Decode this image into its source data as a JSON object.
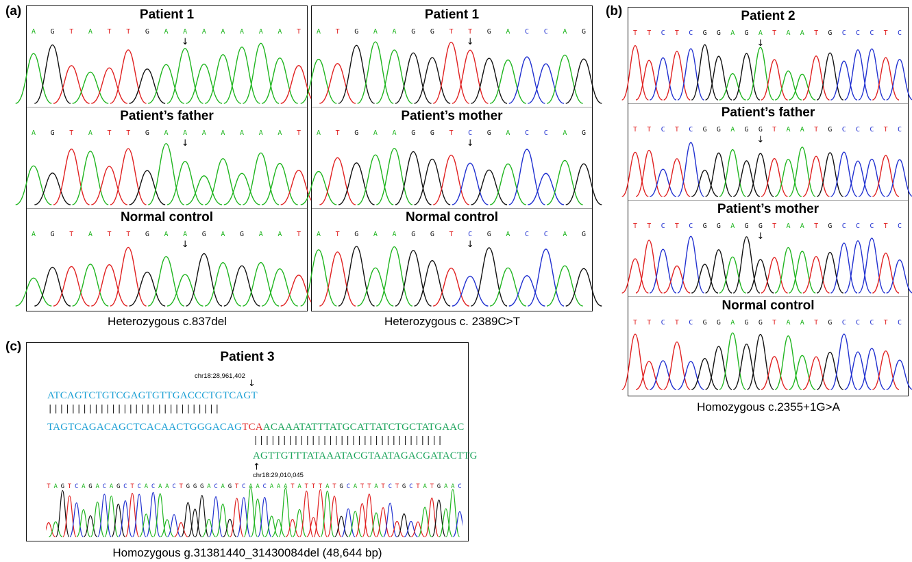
{
  "labels": {
    "a": "(a)",
    "b": "(b)",
    "c": "(c)"
  },
  "colors": {
    "A": "#1fb51f",
    "G": "#111111",
    "T": "#e02020",
    "C": "#2030d0",
    "cyan": "#1a9fd4",
    "green": "#1aa35a",
    "red": "#e03030"
  },
  "panel_a1": {
    "caption": "Heterozygous c.837del",
    "tracks": [
      {
        "title": "Patient 1",
        "bases": "AGTATTGAAAAAAAT",
        "arrow_index": 8
      },
      {
        "title": "Patient’s father",
        "bases": "AGTATTGAAAAAAAT",
        "arrow_index": 8
      },
      {
        "title": "Normal control",
        "bases": "AGTATTGAAGAGAAT",
        "arrow_index": 8
      }
    ]
  },
  "panel_a2": {
    "caption": "Heterozygous c. 2389C>T",
    "tracks": [
      {
        "title": "Patient 1",
        "bases": "ATGAAGGTTGACCAG",
        "arrow_index": 8
      },
      {
        "title": "Patient’s mother",
        "bases": "ATGAAGGTCGACCAG",
        "arrow_index": 8
      },
      {
        "title": "Normal control",
        "bases": "ATGAAGGTCGACCAG",
        "arrow_index": 8
      }
    ]
  },
  "panel_b": {
    "caption": "Homozygous c.2355+1G>A",
    "tracks": [
      {
        "title": "Patient 2",
        "bases": "TTCTCGGAGATAATGCCCTC",
        "arrow_index": 9
      },
      {
        "title": "Patient’s father",
        "bases": "TTCTCGGAGGTAATGCCCTC",
        "arrow_index": 9
      },
      {
        "title": "Patient’s mother",
        "bases": "TTCTCGGAGGTAATGCCCTC",
        "arrow_index": 9
      },
      {
        "title": "Normal control",
        "bases": "TTCTCGGAGGTAATGCCCTC",
        "arrow_index": -1
      }
    ]
  },
  "panel_c": {
    "title": "Patient 3",
    "caption": "Homozygous g.31381440_31430084del (48,644 bp)",
    "coord_top": "chr18:28,961,402",
    "coord_bottom": "chr18:29,010,045",
    "seq_top": "ATCAGTCTGTCGAGTGTTGACCCTGTCAGT",
    "seq_mid_left": "TAGTCAGACAGCTCACAACTGGGACAG",
    "seq_mid_red": "TCA",
    "seq_mid_right": "ACAAATATTTATGCATTATCTGCTATGAAC",
    "seq_bottom": "AGTTGTTTATAAATACGTAATAGACGATACTTG",
    "trace_bases": "TAGTCAGACAGCTCACAACTGGGACAGTCAACAAATATTTATGCATTATCTGCTATGAAC"
  }
}
